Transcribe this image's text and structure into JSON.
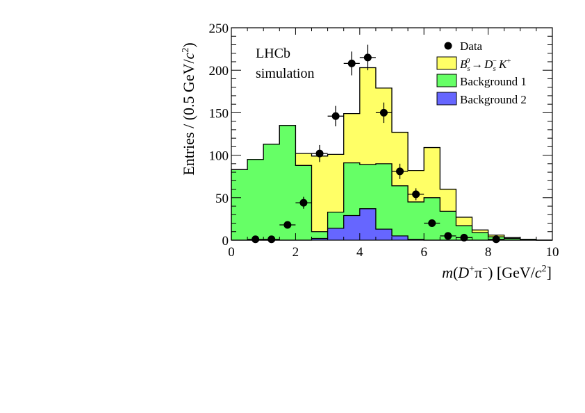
{
  "chart_data": {
    "type": "histogram",
    "xlabel": "m(D⁺π⁻) [GeV/c²]",
    "ylabel": "Entries / (0.5 GeV/c²)",
    "xlim": [
      0,
      10
    ],
    "ylim": [
      0,
      250
    ],
    "xticks": [
      0,
      2,
      4,
      6,
      8,
      10
    ],
    "yticks": [
      0,
      50,
      100,
      150,
      200,
      250
    ],
    "bin_width": 0.5,
    "stacked": true,
    "annotation": [
      "LHCb",
      "simulation"
    ],
    "legend_position": "top-right",
    "series": [
      {
        "name": "Background 2",
        "color": "#6666ff",
        "values": [
          0,
          0,
          0,
          0,
          0,
          2,
          14,
          29,
          37,
          13,
          5,
          1,
          0,
          0,
          0,
          0,
          0,
          0,
          0,
          0
        ]
      },
      {
        "name": "Background 1",
        "color": "#66ff66",
        "values": [
          83,
          95,
          113,
          135,
          88,
          8,
          19,
          62,
          52,
          77,
          59,
          44,
          50,
          34,
          17,
          9,
          4,
          2,
          1,
          0
        ]
      },
      {
        "name": "B_s^0 → D_s^- K^+",
        "color": "#ffff66",
        "values": [
          0,
          0,
          0,
          0,
          14,
          89,
          68,
          58,
          114,
          89,
          63,
          37,
          59,
          26,
          10,
          3,
          2,
          1,
          0,
          0
        ]
      }
    ],
    "data_points": {
      "name": "Data",
      "x": [
        0.75,
        1.25,
        1.75,
        2.25,
        2.75,
        3.25,
        3.75,
        4.25,
        4.75,
        5.25,
        5.75,
        6.25,
        6.75,
        7.25,
        8.25
      ],
      "y": [
        1,
        1,
        18,
        44,
        102,
        146,
        208,
        215,
        150,
        81,
        54,
        20,
        5,
        3,
        1
      ],
      "yerr": [
        1,
        1,
        4,
        7,
        10,
        12,
        14,
        15,
        12,
        9,
        7,
        4,
        2,
        2,
        1
      ]
    },
    "legend": {
      "data": "Data",
      "signal": {
        "italic": "B",
        "sub1": "s",
        "sup1": "0",
        "arrow": "→",
        "D": "D",
        "sub2": "s",
        "sup2": "−",
        "K": "K",
        "sup3": "+"
      },
      "bkg1": "Background 1",
      "bkg2": "Background 2"
    },
    "axis_text": {
      "ylabel": {
        "pre": "Entries / (0.5 GeV/",
        "c": "c",
        "exp": "2",
        "post": ")"
      },
      "xlabel": {
        "m": "m",
        "open": "(",
        "D": "D",
        "sup_plus": "+",
        "pi": "π",
        "sup_minus": "−",
        "close": ")",
        "units": " [GeV/",
        "c": "c",
        "exp": "2",
        "end": "]"
      }
    }
  }
}
